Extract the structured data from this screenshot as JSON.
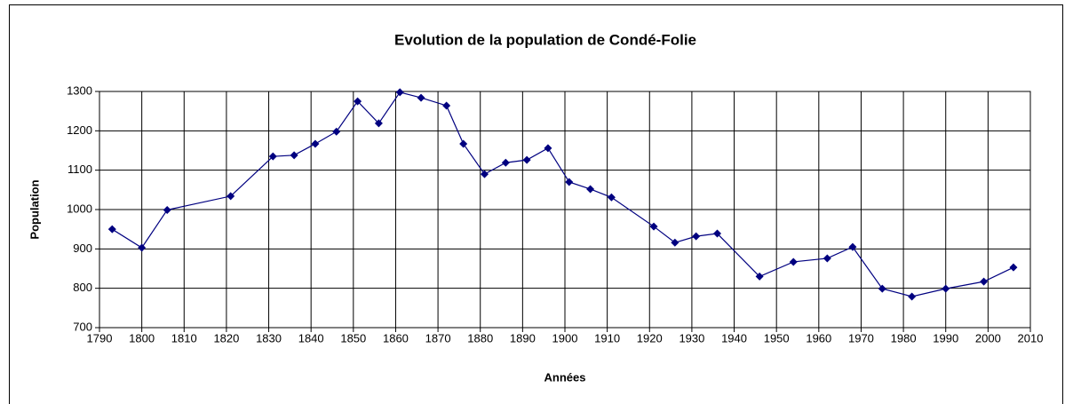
{
  "chart_data": {
    "type": "line",
    "title": "Evolution de la population de Condé-Folie",
    "xlabel": "Années",
    "ylabel": "Population",
    "x": [
      1793,
      1800,
      1806,
      1821,
      1831,
      1836,
      1841,
      1846,
      1851,
      1856,
      1861,
      1866,
      1872,
      1876,
      1881,
      1886,
      1891,
      1896,
      1901,
      1906,
      1911,
      1921,
      1926,
      1931,
      1936,
      1946,
      1954,
      1962,
      1968,
      1975,
      1982,
      1990,
      1999,
      2006
    ],
    "series": [
      {
        "name": "Population",
        "color": "#000080",
        "values": [
          950,
          903,
          999,
          1034,
          1135,
          1138,
          1167,
          1198,
          1275,
          1219,
          1298,
          1284,
          1264,
          1167,
          1090,
          1119,
          1126,
          1156,
          1070,
          1052,
          1031,
          957,
          916,
          932,
          939,
          830,
          867,
          876,
          905,
          799,
          779,
          799,
          817,
          853
        ]
      }
    ],
    "xlim": [
      1790,
      2010
    ],
    "xticks": [
      1790,
      1800,
      1810,
      1820,
      1830,
      1840,
      1850,
      1860,
      1870,
      1880,
      1890,
      1900,
      1910,
      1920,
      1930,
      1940,
      1950,
      1960,
      1970,
      1980,
      1990,
      2000,
      2010
    ],
    "ylim": [
      700,
      1300
    ],
    "yticks": [
      700,
      800,
      900,
      1000,
      1100,
      1200,
      1300
    ],
    "grid": true
  }
}
